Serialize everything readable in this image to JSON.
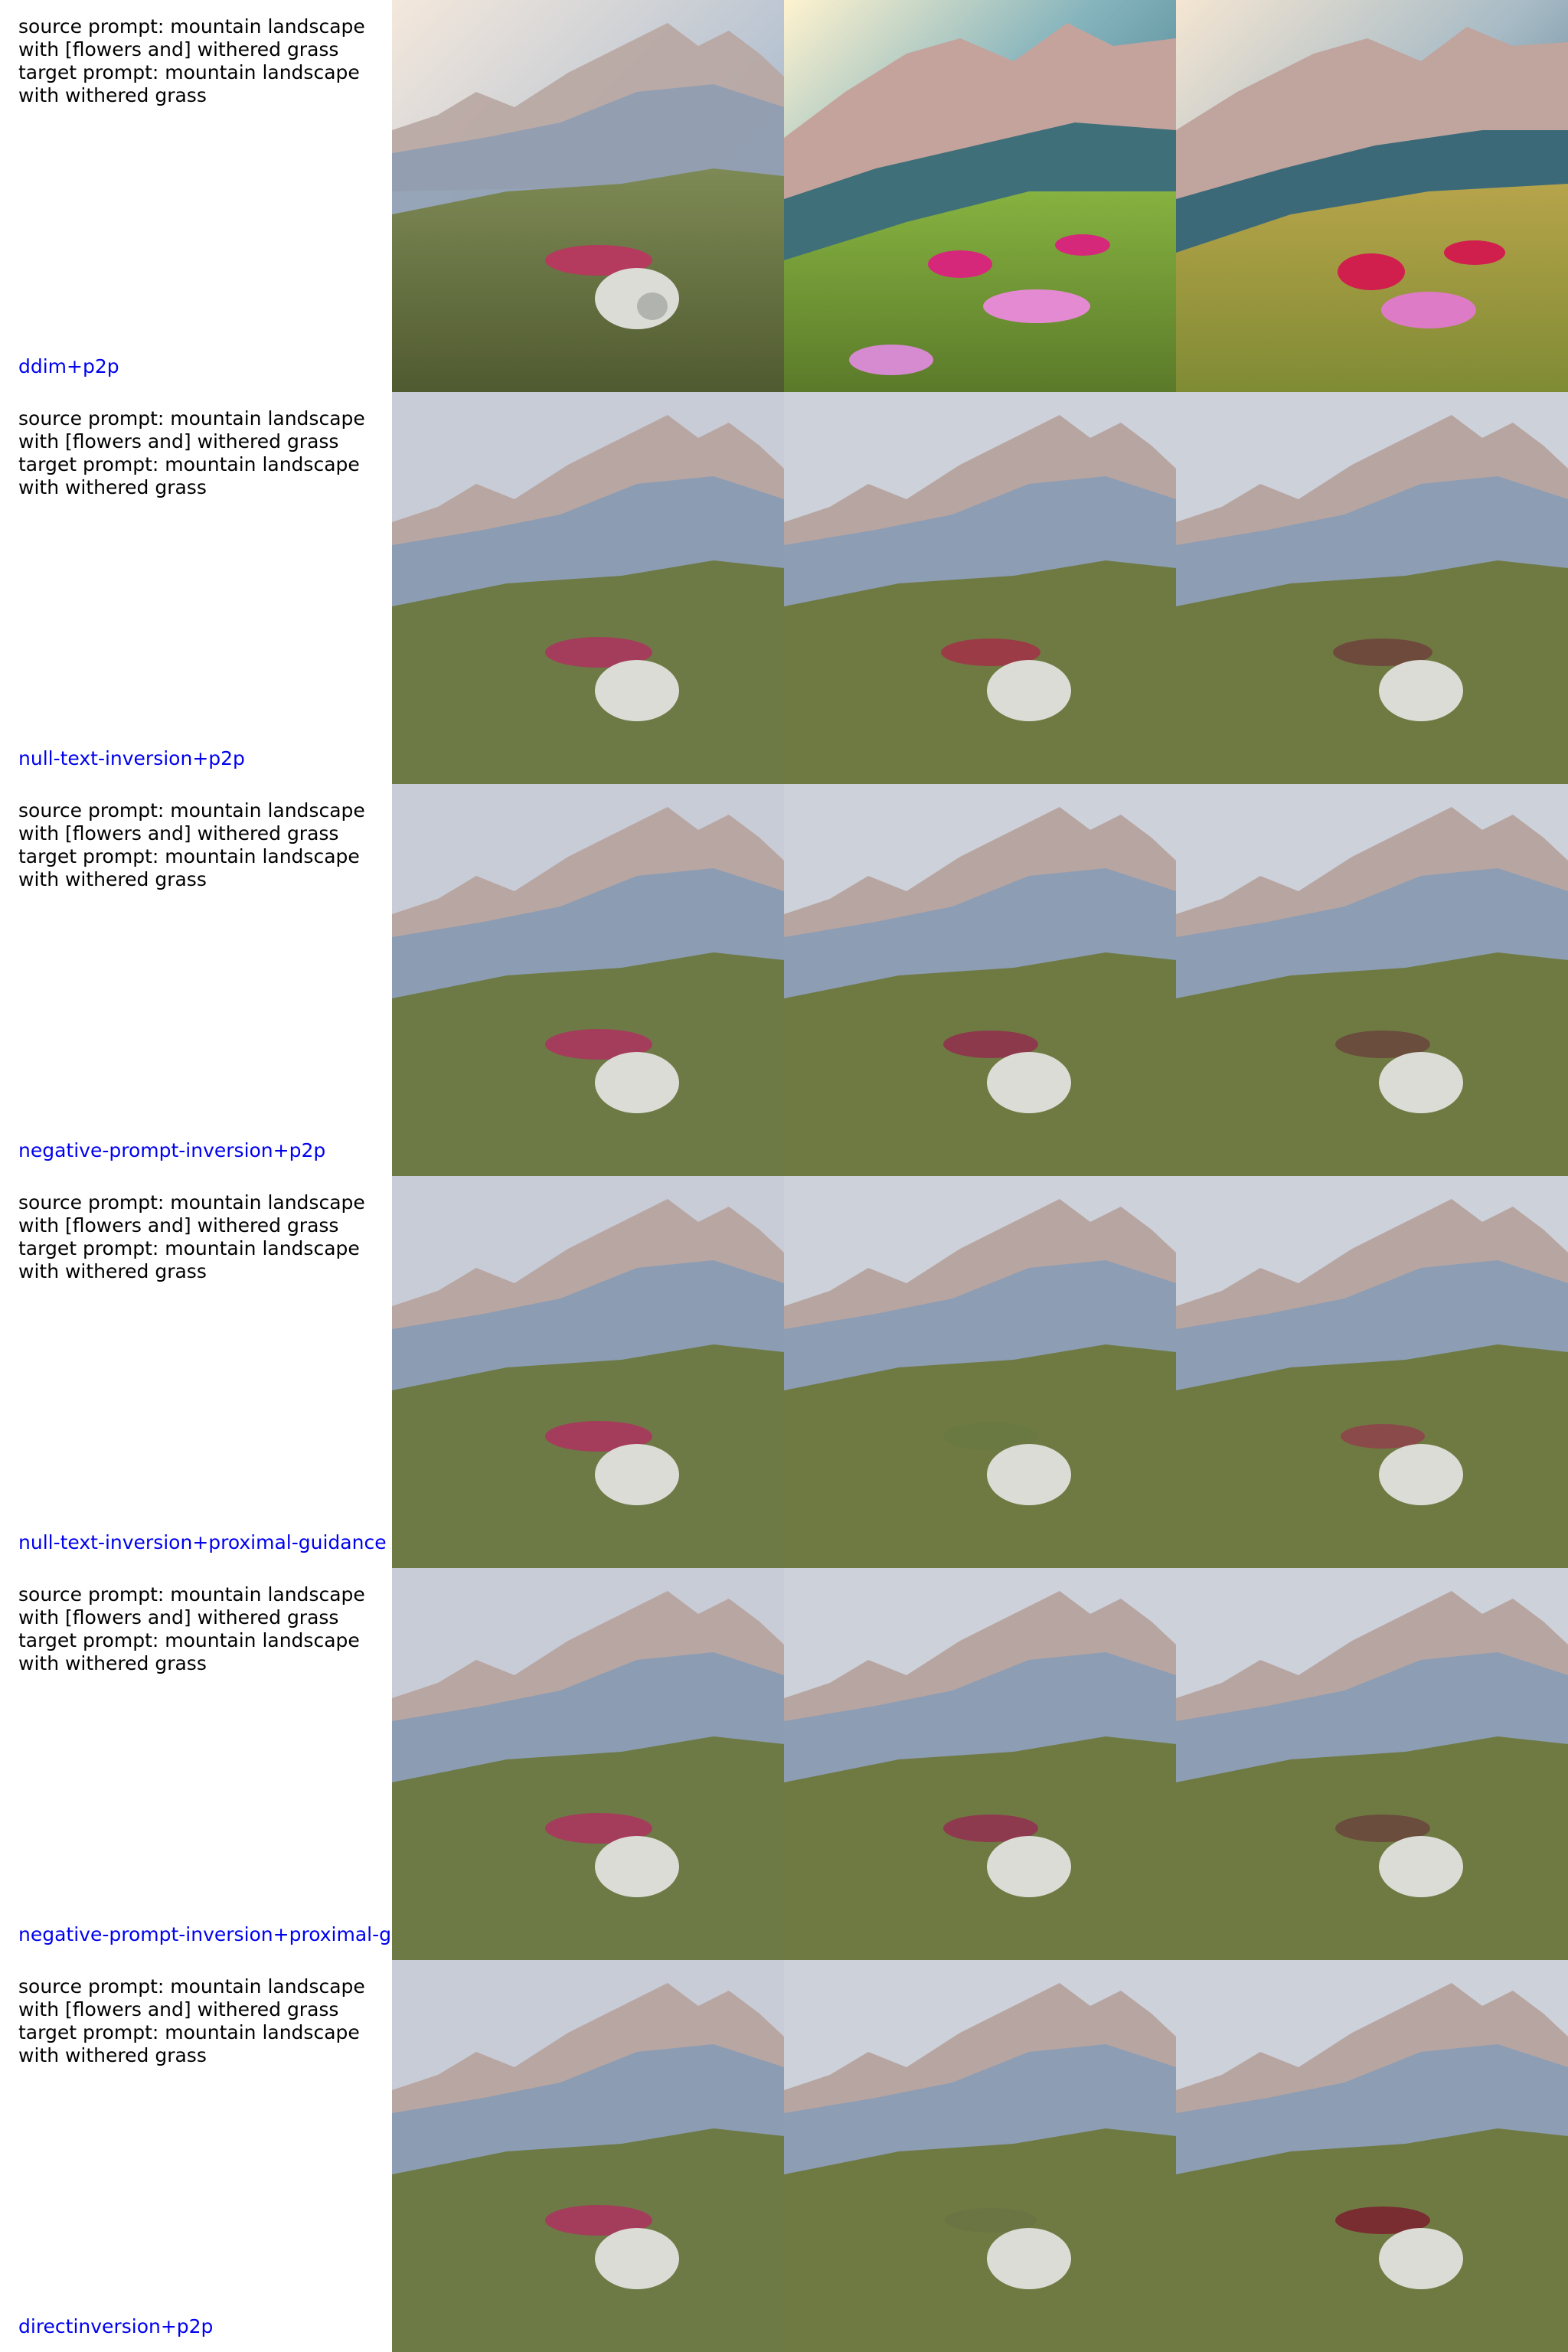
{
  "colors": {
    "method_label": "#0000ee",
    "prompt_text": "#000000",
    "background": "#ffffff"
  },
  "prompt_block": "source prompt: mountain landscape\nwith [flowers and] withered grass\ntarget prompt: mountain landscape\nwith withered grass",
  "rows": [
    {
      "method": "ddim+p2p",
      "image_description": [
        "source: mountain landscape with pink flowers, grass and a pale rock",
        "ddim+p2p edit: saturated green slope with pink flowers under a teal sky",
        "ddim+p2p edit: golden-green slope with red and pink flowers"
      ]
    },
    {
      "method": "null-text-inversion+p2p",
      "image_description": [
        "source: mountain landscape with pink flowers, grass and a pale rock",
        "edit: flowers faded to red, withered grass",
        "edit: flowers faded to brown, withered grass"
      ]
    },
    {
      "method": "negative-prompt-inversion+p2p",
      "image_description": [
        "source: mountain landscape with pink flowers, grass and a pale rock",
        "edit: flowers partly withered",
        "edit: flowers withered to brown"
      ]
    },
    {
      "method": "null-text-inversion+proximal-guidance",
      "image_description": [
        "source: mountain landscape with pink flowers, grass and a pale rock",
        "edit: flowers replaced by grass",
        "edit: flowers reduced, withered grass"
      ]
    },
    {
      "method": "negative-prompt-inversion+proximal-guidance",
      "image_description": [
        "source: mountain landscape with pink flowers, grass and a pale rock",
        "edit: flowers faded, withered grass",
        "edit: flowers withered to brown"
      ]
    },
    {
      "method": "directinversion+p2p",
      "image_description": [
        "source: mountain landscape with pink flowers, grass and a pale rock",
        "edit: flowers removed, withered grass",
        "edit: flowers turned dark red, withered grass"
      ]
    }
  ]
}
